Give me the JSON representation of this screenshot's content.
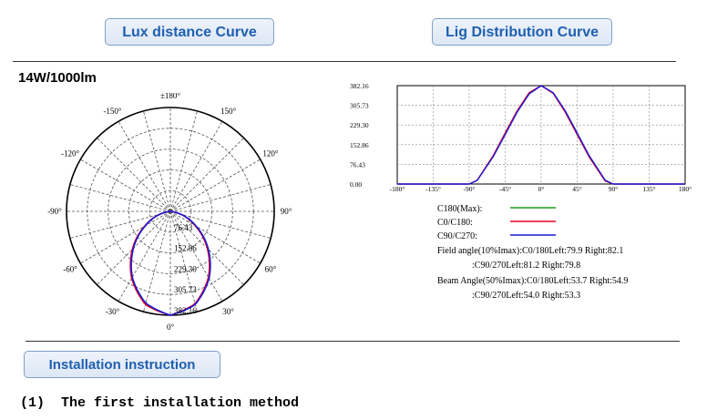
{
  "header": {
    "left_button": "Lux distance Curve",
    "right_button": "Lig Distribution Curve"
  },
  "model_label": "14W/1000lm",
  "polar": {
    "angle_labels": [
      "±180°",
      "-150°",
      "150°",
      "-120°",
      "120°",
      "-90°",
      "90°",
      "-60°",
      "60°",
      "-30°",
      "30°",
      "0°"
    ],
    "radial_labels": [
      "76.43",
      "152.86",
      "229.30",
      "305.73",
      "382.16"
    ]
  },
  "chart_data": {
    "type": "line",
    "title": "",
    "xlabel": "",
    "ylabel": "",
    "x_ticks": [
      "-180°",
      "-135°",
      "-90°",
      "-45°",
      "0°",
      "45°",
      "90°",
      "135°",
      "180°"
    ],
    "y_ticks": [
      "0.00",
      "76.43",
      "152.86",
      "229.30",
      "305.73",
      "382.16"
    ],
    "xlim": [
      -180,
      180
    ],
    "ylim": [
      0,
      382.16
    ],
    "grid": true,
    "x": [
      -180,
      -90,
      -80,
      -60,
      -45,
      -30,
      -15,
      0,
      15,
      30,
      45,
      60,
      80,
      90,
      180
    ],
    "series": [
      {
        "name": "C0/C180",
        "color": "#e8001c",
        "values": [
          0,
          0,
          15,
          110,
          198,
          285,
          355,
          382,
          352,
          280,
          192,
          105,
          12,
          0,
          0
        ]
      },
      {
        "name": "C90/C270",
        "color": "#1a1ad6",
        "values": [
          0,
          0,
          14,
          106,
          192,
          280,
          350,
          382,
          355,
          285,
          198,
          110,
          15,
          0,
          0
        ]
      }
    ]
  },
  "legend": {
    "rows": [
      {
        "label": "C180(Max):",
        "color": "#1a9a1a"
      },
      {
        "label": "C0/C180:",
        "color": "#e8001c"
      },
      {
        "label": "C90/C270:",
        "color": "#1a1ad6"
      }
    ],
    "field_angle_1": "Field angle(10%Imax):C0/180Left:79.9 Right:82.1",
    "field_angle_2": ":C90/270Left:81.2 Right:79.8",
    "beam_angle_1": "Beam Angle(50%Imax):C0/180Left:53.7 Right:54.9",
    "beam_angle_2": ":C90/270Left:54.0 Right:53.3"
  },
  "install_button": "Installation instruction",
  "install_method": "(1)  The first installation method"
}
